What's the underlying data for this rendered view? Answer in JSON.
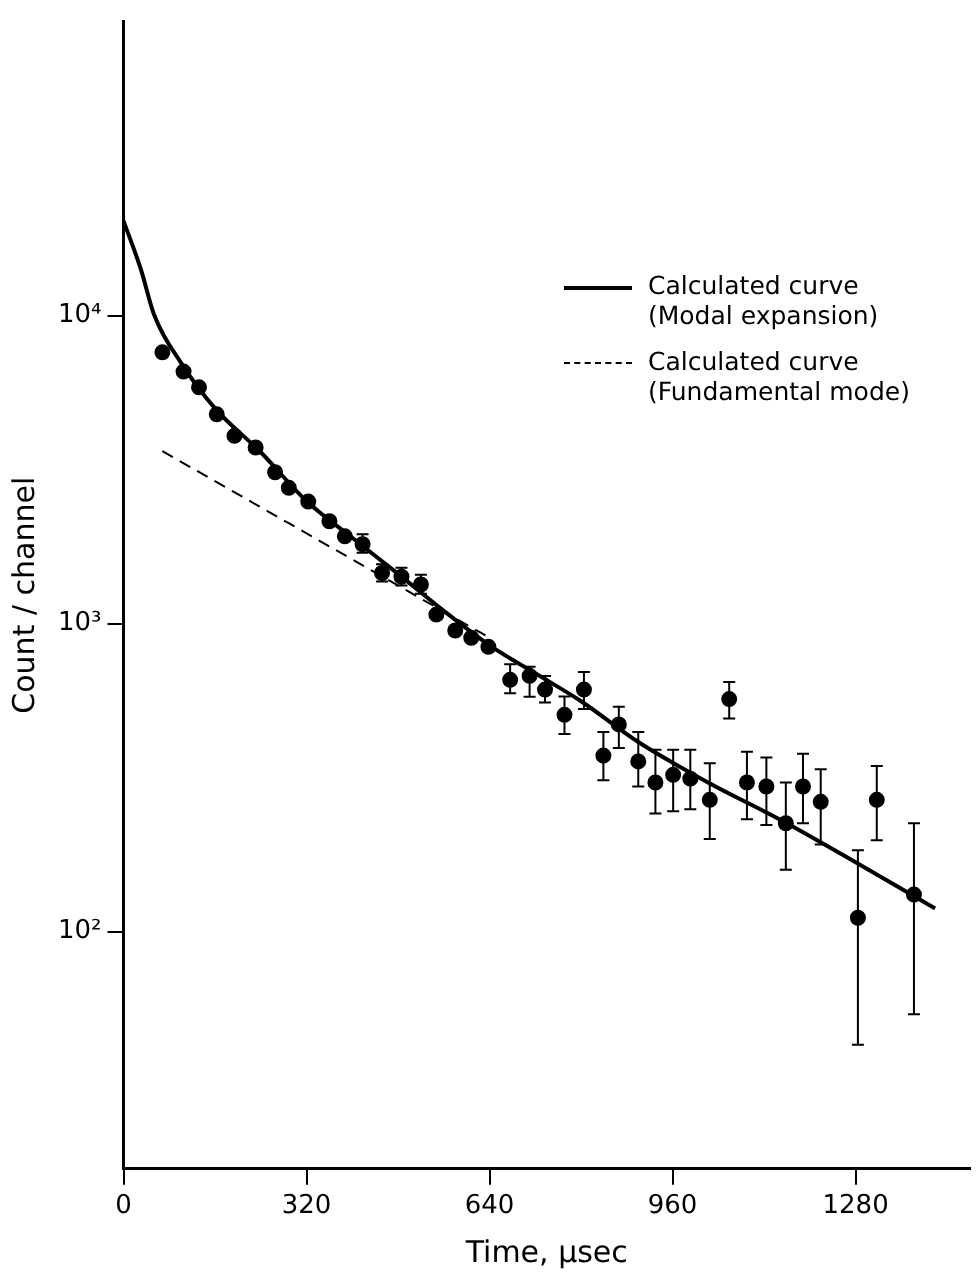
{
  "chart_data": {
    "type": "scatter",
    "xlabel": "Time, μsec",
    "ylabel": "Count / channel",
    "log": "y",
    "grid": false,
    "legend": "top right",
    "xlim": [
      0,
      1480
    ],
    "xticks": [
      0,
      320,
      640,
      960,
      1280
    ],
    "ylim": [
      17,
      90000
    ],
    "yticks": [
      {
        "value": 100,
        "label": "10²"
      },
      {
        "value": 1000,
        "label": "10³"
      },
      {
        "value": 10000,
        "label": "10⁴"
      }
    ],
    "series": [
      {
        "type": "scatter",
        "marker": "circle",
        "color": "#000000",
        "x": [
          68,
          105,
          132,
          163,
          194,
          231,
          265,
          289,
          323,
          360,
          387,
          418,
          452,
          486,
          520,
          547,
          580,
          608,
          638,
          676,
          710,
          737,
          771,
          805,
          839,
          866,
          900,
          930,
          961,
          991,
          1025,
          1059,
          1090,
          1124,
          1158,
          1188,
          1219,
          1284,
          1317,
          1382
        ],
        "values": [
          7600,
          6580,
          5850,
          4780,
          4070,
          3730,
          3100,
          2760,
          2490,
          2150,
          1920,
          1810,
          1460,
          1420,
          1340,
          1070,
          950,
          900,
          841,
          657,
          677,
          611,
          506,
          611,
          373,
          471,
          357,
          305,
          323,
          314,
          268,
          569,
          305,
          296,
          225,
          296,
          264,
          111,
          268,
          132
        ],
        "errors": [
          null,
          null,
          null,
          null,
          null,
          null,
          null,
          null,
          null,
          null,
          null,
          [
            1700,
            1950
          ],
          [
            1370,
            1560
          ],
          [
            1330,
            1520
          ],
          [
            1250,
            1440
          ],
          null,
          null,
          null,
          null,
          [
            594,
            738
          ],
          [
            579,
            724
          ],
          [
            555,
            676
          ],
          [
            438,
            580
          ],
          [
            528,
            697
          ],
          [
            310,
            445
          ],
          [
            395,
            537
          ],
          [
            296,
            445
          ],
          [
            242,
            390
          ],
          [
            246,
            390
          ],
          [
            250,
            390
          ],
          [
            200,
            352
          ],
          [
            492,
            647
          ],
          [
            232,
            384
          ],
          [
            222,
            368
          ],
          [
            159,
            305
          ],
          [
            225,
            378
          ],
          [
            192,
            337
          ],
          [
            43,
            184
          ],
          [
            198,
            345
          ],
          [
            54,
            225
          ]
        ]
      },
      {
        "type": "line",
        "name": "Calculated curve (Modal expansion)",
        "marker": "none",
        "line_style": "solid",
        "color": "#000000",
        "x": [
          0,
          30,
          54,
          102,
          160,
          240,
          320,
          400,
          480,
          560,
          640,
          720,
          800,
          900,
          1022,
          1150,
          1280,
          1419
        ],
        "values": [
          20300,
          14200,
          10000,
          6960,
          5000,
          3600,
          2500,
          1900,
          1450,
          1100,
          850,
          690,
          560,
          413,
          305,
          230,
          168,
          119
        ]
      },
      {
        "type": "line",
        "name": "Calculated curve (Fundamental mode)",
        "marker": "none",
        "line_style": "dashed",
        "color": "#000000",
        "x": [
          68,
          502,
          640
        ],
        "values": [
          3630,
          1260,
          900
        ]
      }
    ]
  }
}
